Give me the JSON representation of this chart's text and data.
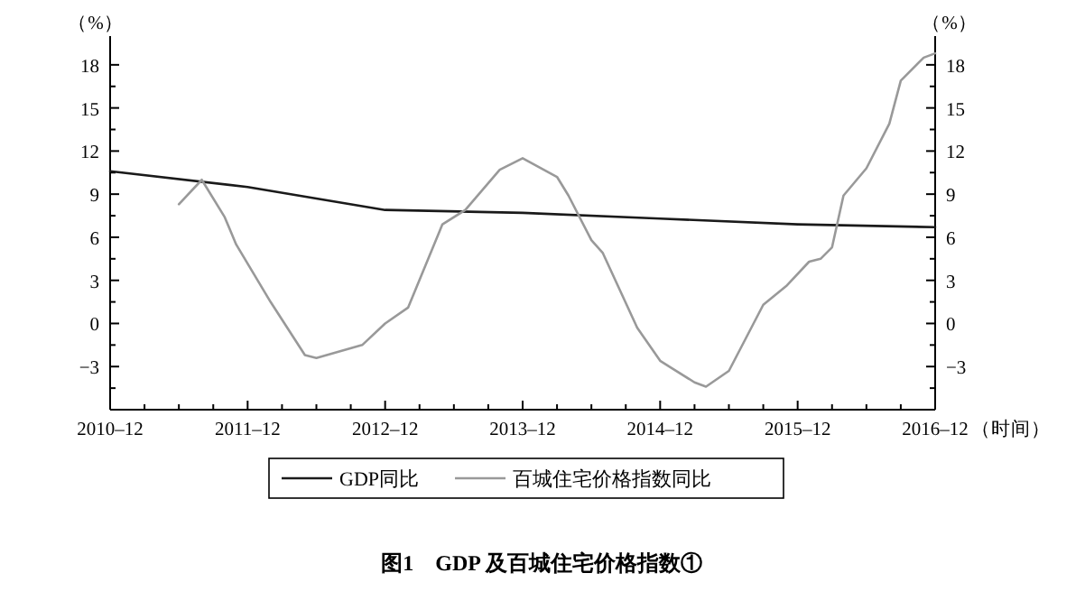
{
  "chart_data": {
    "type": "line",
    "title": "图1　GDP 及百城住宅价格指数①",
    "xlabel": "（时间）",
    "ylabel": "（%）",
    "y2label": "（%）",
    "xlim": [
      "2010-12",
      "2016-12"
    ],
    "xticks": [
      {
        "value": "2010-12",
        "label": "2010–12"
      },
      {
        "value": "2011-03",
        "label": null
      },
      {
        "value": "2011-06",
        "label": null
      },
      {
        "value": "2011-09",
        "label": null
      },
      {
        "value": "2011-12",
        "label": "2011–12"
      },
      {
        "value": "2012-03",
        "label": null
      },
      {
        "value": "2012-06",
        "label": null
      },
      {
        "value": "2012-09",
        "label": null
      },
      {
        "value": "2012-12",
        "label": "2012–12"
      },
      {
        "value": "2013-03",
        "label": null
      },
      {
        "value": "2013-06",
        "label": null
      },
      {
        "value": "2013-09",
        "label": null
      },
      {
        "value": "2013-12",
        "label": "2013–12"
      },
      {
        "value": "2014-03",
        "label": null
      },
      {
        "value": "2014-06",
        "label": null
      },
      {
        "value": "2014-09",
        "label": null
      },
      {
        "value": "2014-12",
        "label": "2014–12"
      },
      {
        "value": "2015-03",
        "label": null
      },
      {
        "value": "2015-06",
        "label": null
      },
      {
        "value": "2015-09",
        "label": null
      },
      {
        "value": "2015-12",
        "label": "2015–12"
      },
      {
        "value": "2016-03",
        "label": null
      },
      {
        "value": "2016-06",
        "label": null
      },
      {
        "value": "2016-09",
        "label": null
      },
      {
        "value": "2016-12",
        "label": "2016–12"
      }
    ],
    "ylim": [
      -6,
      20
    ],
    "yticks": [
      {
        "value": -4.5,
        "label": null
      },
      {
        "value": -3,
        "label": "−3"
      },
      {
        "value": -1.5,
        "label": null
      },
      0,
      {
        "value": 1.5,
        "label": null
      },
      3,
      {
        "value": 4.5,
        "label": null
      },
      6,
      {
        "value": 7.5,
        "label": null
      },
      9,
      {
        "value": 10.5,
        "label": null
      },
      12,
      {
        "value": 13.5,
        "label": null
      },
      15,
      {
        "value": 16.5,
        "label": null
      },
      18
    ],
    "y2lim": [
      -6,
      20
    ],
    "y2ticks": [
      {
        "value": -4.5,
        "label": null
      },
      {
        "value": -3,
        "label": "−3"
      },
      {
        "value": -1.5,
        "label": null
      },
      0,
      {
        "value": 1.5,
        "label": null
      },
      3,
      {
        "value": 4.5,
        "label": null
      },
      6,
      {
        "value": 7.5,
        "label": null
      },
      9,
      {
        "value": 10.5,
        "label": null
      },
      12,
      {
        "value": 13.5,
        "label": null
      },
      15,
      {
        "value": 16.5,
        "label": null
      },
      18
    ],
    "grid": false,
    "legend": "bottom",
    "line_style": "solid",
    "marker": "none",
    "series": [
      {
        "name": "GDP同比",
        "color": "#1a1a1a",
        "x": [
          "2010-12",
          "2011-12",
          "2012-12",
          "2013-12",
          "2014-12",
          "2015-12",
          "2016-12"
        ],
        "values": [
          10.6,
          9.5,
          7.9,
          7.7,
          7.3,
          6.9,
          6.7
        ]
      },
      {
        "name": "百城住宅价格指数同比",
        "color": "#999999",
        "x": [
          "2011-06",
          "2011-08",
          "2011-10",
          "2011-11",
          "2012-02",
          "2012-05",
          "2012-06",
          "2012-10",
          "2012-12",
          "2013-02",
          "2013-05",
          "2013-07",
          "2013-10",
          "2013-12",
          "2014-03",
          "2014-04",
          "2014-06",
          "2014-07",
          "2014-10",
          "2014-12",
          "2015-01",
          "2015-03",
          "2015-04",
          "2015-06",
          "2015-09",
          "2015-11",
          "2016-01",
          "2016-02",
          "2016-03",
          "2016-04",
          "2016-06",
          "2016-08",
          "2016-09",
          "2016-11",
          "2016-12"
        ],
        "values": [
          8.3,
          10.0,
          7.4,
          5.5,
          1.5,
          -2.2,
          -2.4,
          -1.5,
          0,
          1.1,
          6.9,
          7.9,
          10.7,
          11.5,
          10.2,
          8.9,
          5.8,
          4.9,
          -0.3,
          -2.6,
          -3.1,
          -4.1,
          -4.4,
          -3.3,
          1.3,
          2.6,
          4.3,
          4.5,
          5.3,
          8.9,
          10.8,
          13.9,
          16.9,
          18.5,
          18.8
        ]
      }
    ]
  }
}
